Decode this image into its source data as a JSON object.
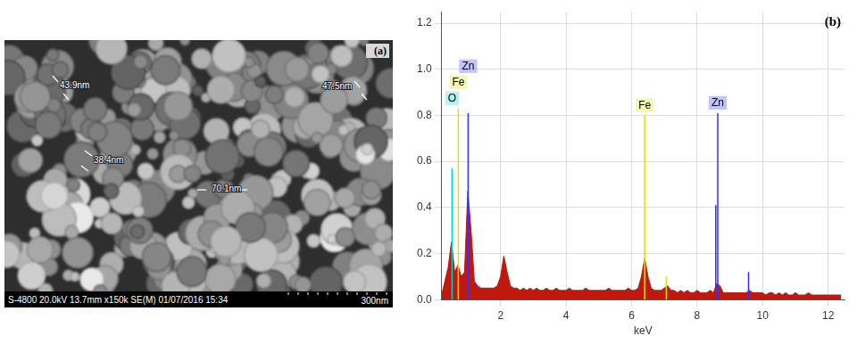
{
  "image_panel": {
    "label": "(a)",
    "measurements": [
      "43.9nm",
      "47.5nm",
      "38.4nm",
      "70.1nm"
    ],
    "info_bar": "S-4800 20.0kV 13.7mm x150k SE(M) 01/07/2016 15:34",
    "scale_bar": "300nm"
  },
  "chart_data": {
    "type": "line",
    "panel_label": "(b)",
    "x_label": "keV",
    "x": [
      0.2,
      0.3,
      0.4,
      0.5,
      0.6,
      0.7,
      0.8,
      0.9,
      1.0,
      1.1,
      1.2,
      1.3,
      1.4,
      1.5,
      1.6,
      1.7,
      1.8,
      1.9,
      2.0,
      2.1,
      2.2,
      2.3,
      2.4,
      2.5,
      2.6,
      2.7,
      2.8,
      2.9,
      3.0,
      3.1,
      3.2,
      3.3,
      3.4,
      3.5,
      3.6,
      3.7,
      3.8,
      3.9,
      4.0,
      4.1,
      4.2,
      4.3,
      4.4,
      4.5,
      4.6,
      4.7,
      4.8,
      4.9,
      5.0,
      5.1,
      5.2,
      5.3,
      5.4,
      5.5,
      5.6,
      5.7,
      5.8,
      5.9,
      6.0,
      6.1,
      6.2,
      6.3,
      6.4,
      6.5,
      6.6,
      6.7,
      6.8,
      6.9,
      7.0,
      7.1,
      7.2,
      7.3,
      7.4,
      7.5,
      7.6,
      7.7,
      7.8,
      7.9,
      8.0,
      8.1,
      8.2,
      8.3,
      8.4,
      8.5,
      8.6,
      8.7,
      8.8,
      8.9,
      9.0,
      9.1,
      9.2,
      9.3,
      9.4,
      9.5,
      9.6,
      9.7,
      9.8,
      9.9,
      10.0,
      10.1,
      10.2,
      10.3,
      10.4,
      10.5,
      10.6,
      10.7,
      10.8,
      10.9,
      11.0,
      11.1,
      11.2,
      11.3,
      11.4,
      11.5,
      11.6,
      11.7,
      11.8,
      11.9,
      12.0,
      12.1,
      12.2,
      12.3,
      12.4
    ],
    "values": [
      0.02,
      0.08,
      0.14,
      0.25,
      0.12,
      0.15,
      0.1,
      0.12,
      0.47,
      0.3,
      0.08,
      0.06,
      0.05,
      0.05,
      0.05,
      0.05,
      0.05,
      0.06,
      0.1,
      0.19,
      0.12,
      0.06,
      0.05,
      0.05,
      0.04,
      0.05,
      0.04,
      0.05,
      0.04,
      0.05,
      0.04,
      0.04,
      0.05,
      0.04,
      0.04,
      0.05,
      0.04,
      0.04,
      0.04,
      0.05,
      0.04,
      0.04,
      0.04,
      0.04,
      0.05,
      0.04,
      0.04,
      0.04,
      0.04,
      0.04,
      0.04,
      0.05,
      0.04,
      0.04,
      0.04,
      0.04,
      0.04,
      0.05,
      0.04,
      0.04,
      0.05,
      0.1,
      0.18,
      0.1,
      0.05,
      0.04,
      0.04,
      0.04,
      0.05,
      0.06,
      0.04,
      0.04,
      0.03,
      0.04,
      0.03,
      0.04,
      0.03,
      0.03,
      0.04,
      0.03,
      0.03,
      0.03,
      0.04,
      0.03,
      0.07,
      0.06,
      0.03,
      0.03,
      0.03,
      0.03,
      0.03,
      0.03,
      0.03,
      0.03,
      0.04,
      0.03,
      0.03,
      0.03,
      0.03,
      0.02,
      0.03,
      0.03,
      0.02,
      0.03,
      0.02,
      0.03,
      0.02,
      0.02,
      0.03,
      0.02,
      0.02,
      0.02,
      0.03,
      0.02,
      0.02,
      0.02,
      0.02,
      0.02,
      0.02,
      0.02,
      0.02,
      0.02,
      0.02
    ],
    "color": "#c0180c",
    "xlim": [
      0.2,
      12.5
    ],
    "xticks": [
      2,
      4,
      6,
      8,
      10,
      12
    ],
    "ylim": [
      0,
      1.25
    ],
    "yticks": [
      {
        "value": 0,
        "label": "0.0"
      },
      {
        "value": 0.2,
        "label": "0.2"
      },
      {
        "value": 0.4,
        "label": "0.4"
      },
      {
        "value": 0.6,
        "label": "0.6"
      },
      {
        "value": 0.8,
        "label": "0.8"
      },
      {
        "value": 1,
        "label": "1.0"
      },
      {
        "value": 1.2,
        "label": "1.2"
      }
    ],
    "grid": true,
    "element_lines": [
      {
        "label": "O",
        "x": 0.52,
        "height": 0.57,
        "color": "#00d0d0"
      },
      {
        "label": "Fe",
        "x": 0.71,
        "height": 0.83,
        "color": "#e0e000"
      },
      {
        "label": "Zn",
        "x": 1.01,
        "height": 0.81,
        "color": "#3030ff"
      },
      {
        "label": "Fe",
        "x": 6.4,
        "height": 0.8,
        "color": "#e0e000"
      },
      {
        "label": "Zn",
        "x": 8.63,
        "height": 0.81,
        "color": "#3030ff"
      },
      {
        "x": 8.57,
        "height": 0.41,
        "color": "#3030ff"
      },
      {
        "x": 7.06,
        "height": 0.1,
        "color": "#e0e000"
      },
      {
        "x": 9.57,
        "height": 0.12,
        "color": "#3030ff"
      }
    ]
  }
}
